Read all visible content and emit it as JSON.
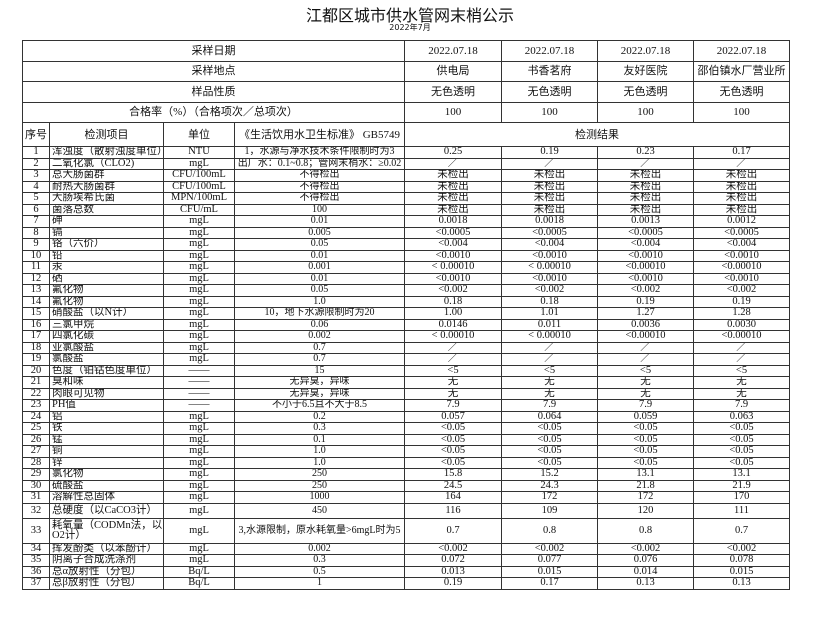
{
  "title": "江都区城市供水管网末梢公示",
  "subtitle": "2022年7月",
  "header": {
    "date_label": "采样日期",
    "dates": [
      "2022.07.18",
      "2022.07.18",
      "2022.07.18",
      "2022.07.18"
    ],
    "site_label": "采样地点",
    "sites": [
      "供电局",
      "书香茗府",
      "友好医院",
      "邵伯镇水厂营业所"
    ],
    "nature_label": "样品性质",
    "natures": [
      "无色透明",
      "无色透明",
      "无色透明",
      "无色透明"
    ],
    "rate_label": "合格率（%）（合格项次／总项次）",
    "rates": [
      "100",
      "100",
      "100",
      "100"
    ]
  },
  "columns": {
    "no": "序号",
    "item": "检测项目",
    "unit": "单位",
    "standard": "《生活饮用水卫生标准》 GB5749",
    "results": "检测结果"
  },
  "rows": [
    [
      "1",
      "浑浊度（散射浊度单位）",
      "NTU",
      "1，水源与净水技术条件限制时为3",
      "0.25",
      "0.19",
      "0.23",
      "0.17"
    ],
    [
      "2",
      "二氧化氯（CLO2)",
      "mgL",
      "出厂水：0.1~0.8；管网末梢水：≥0.02",
      "／",
      "／",
      "／",
      "／"
    ],
    [
      "3",
      "总大肠菌群",
      "CFU/100mL",
      "不得检出",
      "未检出",
      "未检出",
      "未检出",
      "未检出"
    ],
    [
      "4",
      "耐热大肠菌群",
      "CFU/100mL",
      "不得检出",
      "未检出",
      "未检出",
      "未检出",
      "未检出"
    ],
    [
      "5",
      "大肠埃希氏菌",
      "MPN/100mL",
      "不得检出",
      "未检出",
      "未检出",
      "未检出",
      "未检出"
    ],
    [
      "6",
      "菌落总数",
      "CFU/mL",
      "100",
      "未检出",
      "未检出",
      "未检出",
      "未检出"
    ],
    [
      "7",
      "砷",
      "mgL",
      "0.01",
      "0.0018",
      "0.0018",
      "0.0013",
      "0.0012"
    ],
    [
      "8",
      "镉",
      "mgL",
      "0.005",
      "<0.0005",
      "<0.0005",
      "<0.0005",
      "<0.0005"
    ],
    [
      "9",
      "铬（六价）",
      "mgL",
      "0.05",
      "<0.004",
      "<0.004",
      "<0.004",
      "<0.004"
    ],
    [
      "10",
      "铅",
      "mgL",
      "0.01",
      "<0.0010",
      "<0.0010",
      "<0.0010",
      "<0.0010"
    ],
    [
      "11",
      "汞",
      "mgL",
      "0.001",
      "< 0.00010",
      "< 0.00010",
      "<0.00010",
      "<0.00010"
    ],
    [
      "12",
      "硒",
      "mgL",
      "0.01",
      "<0.0010",
      "<0.0010",
      "<0.0010",
      "<0.0010"
    ],
    [
      "13",
      "氟化物",
      "mgL",
      "0.05",
      "<0.002",
      "<0.002",
      "<0.002",
      "<0.002"
    ],
    [
      "14",
      "氟化物",
      "mgL",
      "1.0",
      "0.18",
      "0.18",
      "0.19",
      "0.19"
    ],
    [
      "15",
      "硝酸盐（以N计）",
      "mgL",
      "10，地下水源限制时为20",
      "1.00",
      "1.01",
      "1.27",
      "1.28"
    ],
    [
      "16",
      "三氯甲烷",
      "mgL",
      "0.06",
      "0.0146",
      "0.011",
      "0.0036",
      "0.0030"
    ],
    [
      "17",
      "四氯化碳",
      "mgL",
      "0.002",
      "< 0.00010",
      "< 0.00010",
      "<0.00010",
      "<0.00010"
    ],
    [
      "18",
      "亚氯酸盐",
      "mgL",
      "0.7",
      "／",
      "／",
      "／",
      "／"
    ],
    [
      "19",
      "氯酸盐",
      "mgL",
      "0.7",
      "／",
      "／",
      "／",
      "／"
    ],
    [
      "20",
      "色度（铂钴色度单位）",
      "——",
      "15",
      "<5",
      "<5",
      "<5",
      "<5"
    ],
    [
      "21",
      "臭和味",
      "——",
      "无异臭，异味",
      "无",
      "无",
      "无",
      "无"
    ],
    [
      "22",
      "肉眼可见物",
      "——",
      "无异臭，异味",
      "无",
      "无",
      "无",
      "无"
    ],
    [
      "23",
      "PH值",
      "——",
      "不小于6.5且不大于8.5",
      "7.9",
      "7.9",
      "7.9",
      "7.9"
    ],
    [
      "24",
      "铝",
      "mgL",
      "0.2",
      "0.057",
      "0.064",
      "0.059",
      "0.063"
    ],
    [
      "25",
      "铁",
      "mgL",
      "0.3",
      "<0.05",
      "<0.05",
      "<0.05",
      "<0.05"
    ],
    [
      "26",
      "锰",
      "mgL",
      "0.1",
      "<0.05",
      "<0.05",
      "<0.05",
      "<0.05"
    ],
    [
      "27",
      "铜",
      "mgL",
      "1.0",
      "<0.05",
      "<0.05",
      "<0.05",
      "<0.05"
    ],
    [
      "28",
      "锌",
      "mgL",
      "1.0",
      "<0.05",
      "<0.05",
      "<0.05",
      "<0.05"
    ],
    [
      "29",
      "氯化物",
      "mgL",
      "250",
      "15.8",
      "15.2",
      "13.1",
      "13.1"
    ],
    [
      "30",
      "硫酸盐",
      "mgL",
      "250",
      "24.5",
      "24.3",
      "21.8",
      "21.9"
    ],
    [
      "31",
      "溶解性总固体",
      "mgL",
      "1000",
      "164",
      "172",
      "172",
      "170"
    ],
    [
      "32",
      "总硬度（以CaCO3计）",
      "mgL",
      "450",
      "116",
      "109",
      "120",
      "111"
    ],
    [
      "33",
      "耗氧量（CODMn法，以O2计）",
      "mgL",
      "3,水源限制，原水耗氧量>6mgL时为5",
      "0.7",
      "0.8",
      "0.8",
      "0.7"
    ],
    [
      "34",
      "挥发酚类（以苯酚计）",
      "mgL",
      "0.002",
      "<0.002",
      "<0.002",
      "<0.002",
      "<0.002"
    ],
    [
      "35",
      "阴离子合成洗涤剂",
      "mgL",
      "0.3",
      "0.072",
      "0.077",
      "0.076",
      "0.078"
    ],
    [
      "36",
      "总α放射性（分包）",
      "Bq/L",
      "0.5",
      "0.013",
      "0.015",
      "0.014",
      "0.015"
    ],
    [
      "37",
      "总β放射性（分包）",
      "Bq/L",
      "1",
      "0.19",
      "0.17",
      "0.13",
      "0.13"
    ]
  ]
}
